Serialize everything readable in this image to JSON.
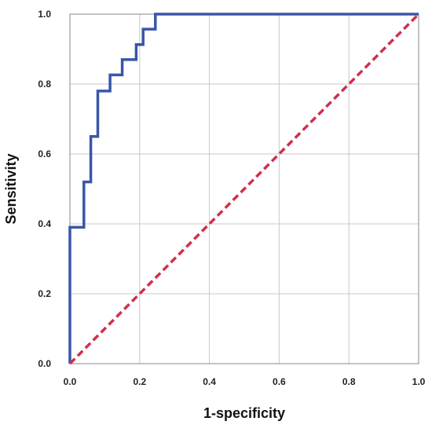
{
  "chart_data": {
    "type": "line",
    "title": "",
    "xlabel": "1-specificity",
    "ylabel": "Sensitivity",
    "xlim": [
      0,
      1
    ],
    "ylim": [
      0,
      1
    ],
    "x_ticks": [
      0,
      0.2,
      0.4,
      0.6,
      0.8,
      1
    ],
    "x_tick_labels": [
      "0.0",
      "0.2",
      "0.4",
      "0.6",
      "0.8",
      "1.0"
    ],
    "y_ticks": [
      0,
      0.2,
      0.4,
      0.6,
      0.8,
      1
    ],
    "y_tick_labels": [
      "0.0",
      "0.2",
      "0.4",
      "0.6",
      "0.8",
      "1.0"
    ],
    "grid": true,
    "legend": "none",
    "series": [
      {
        "style": "step",
        "color": "#3a56a8",
        "x": [
          0,
          0,
          0.04,
          0.04,
          0.06,
          0.06,
          0.08,
          0.08,
          0.115,
          0.115,
          0.15,
          0.15,
          0.19,
          0.19,
          0.21,
          0.21,
          0.245,
          0.245,
          1.0
        ],
        "y": [
          0,
          0.39,
          0.39,
          0.52,
          0.52,
          0.65,
          0.65,
          0.78,
          0.78,
          0.826,
          0.826,
          0.87,
          0.87,
          0.913,
          0.913,
          0.957,
          0.957,
          1.0,
          1.0
        ]
      },
      {
        "style": "dashed",
        "color": "#d0304a",
        "x": [
          0,
          1
        ],
        "y": [
          0,
          1
        ]
      }
    ]
  }
}
